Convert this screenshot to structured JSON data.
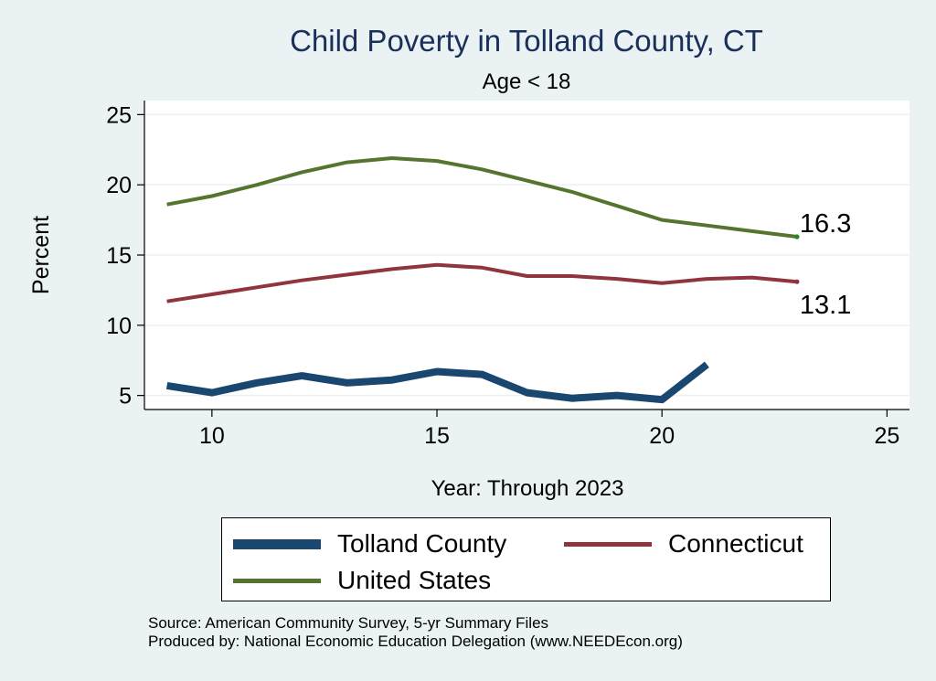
{
  "chart_data": {
    "type": "line",
    "title": "Child Poverty in Tolland County, CT",
    "subtitle": "Age < 18",
    "xlabel": "Year: Through 2023",
    "ylabel": "Percent",
    "xlim": [
      8.5,
      25.5
    ],
    "ylim": [
      4,
      26
    ],
    "xticks": [
      10,
      15,
      20,
      25
    ],
    "yticks": [
      5,
      10,
      15,
      20,
      25
    ],
    "grid": true,
    "legend_position": "bottom",
    "series": [
      {
        "name": "Tolland County",
        "color": "#1a476f",
        "x": [
          9,
          10,
          11,
          12,
          13,
          14,
          15,
          16,
          17,
          18,
          19,
          20,
          21
        ],
        "y": [
          5.7,
          5.2,
          5.9,
          6.4,
          5.9,
          6.1,
          6.7,
          6.5,
          5.2,
          4.8,
          5.0,
          4.7,
          7.2
        ]
      },
      {
        "name": "Connecticut",
        "color": "#90353b",
        "x": [
          9,
          10,
          11,
          12,
          13,
          14,
          15,
          16,
          17,
          18,
          19,
          20,
          21,
          22,
          23
        ],
        "y": [
          11.7,
          12.2,
          12.7,
          13.2,
          13.6,
          14.0,
          14.3,
          14.1,
          13.5,
          13.5,
          13.3,
          13.0,
          13.3,
          13.4,
          13.1
        ]
      },
      {
        "name": "United States",
        "color": "#55752f",
        "x": [
          9,
          10,
          11,
          12,
          13,
          14,
          15,
          16,
          17,
          18,
          19,
          20,
          21,
          22,
          23
        ],
        "y": [
          18.6,
          19.2,
          20.0,
          20.9,
          21.6,
          21.9,
          21.7,
          21.1,
          20.3,
          19.5,
          18.5,
          17.5,
          17.1,
          16.7,
          16.3
        ]
      }
    ],
    "annotations": [
      {
        "text": "16.3",
        "x": 23,
        "y": 16.3,
        "series": "United States"
      },
      {
        "text": "13.1",
        "x": 23,
        "y": 13.1,
        "series": "Connecticut"
      }
    ]
  },
  "legend": {
    "items": [
      {
        "label": "Tolland County"
      },
      {
        "label": "Connecticut"
      },
      {
        "label": "United States"
      }
    ]
  },
  "source": {
    "line1": "Source: American Community Survey, 5-yr Summary Files",
    "line2": "Produced by: National Economic Education Delegation (www.NEEDEcon.org)"
  }
}
